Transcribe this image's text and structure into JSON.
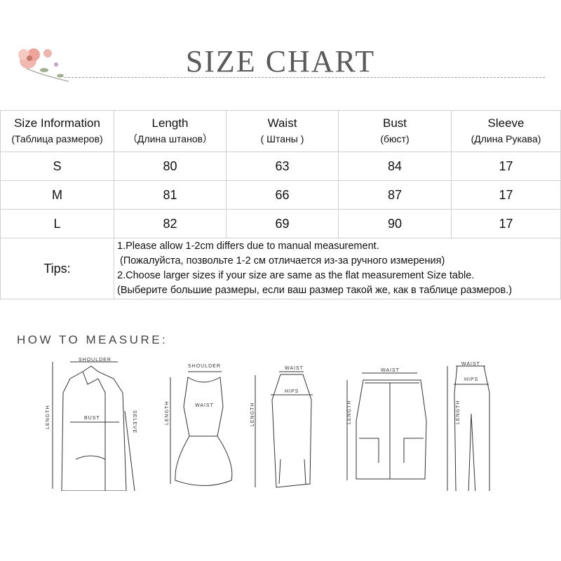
{
  "title": "SIZE CHART",
  "table": {
    "headers": [
      {
        "label": "Size Information",
        "sub": "(Таблица размеров)"
      },
      {
        "label": "Length",
        "sub": "（Длина штанов）"
      },
      {
        "label": "Waist",
        "sub": "( Штаны )"
      },
      {
        "label": "Bust",
        "sub": "(бюст)"
      },
      {
        "label": "Sleeve",
        "sub": "(Длина Рукава)"
      }
    ],
    "rows": [
      [
        "S",
        "80",
        "63",
        "84",
        "17"
      ],
      [
        "M",
        "81",
        "66",
        "87",
        "17"
      ],
      [
        "L",
        "82",
        "69",
        "90",
        "17"
      ]
    ],
    "tips_label": "Tips:",
    "tips": [
      "1.Please allow 1-2cm differs due to manual measurement.",
      " (Пожалуйста, позвольте 1-2 см отличается из-за ручного измерения)",
      "2.Choose larger sizes if your size are same as the flat measurement Size table.",
      "(Выберите большие размеры, если ваш размер такой же, как в таблице размеров.)"
    ]
  },
  "how_to_measure": "HOW TO MEASURE:",
  "diagram_labels": {
    "shoulder": "SHOULDER",
    "bust": "BUST",
    "length": "LENGTH",
    "sleeve": "SELEVE",
    "waist": "WAIST",
    "hips": "HIPS"
  },
  "colors": {
    "title": "#5a5a5a",
    "border": "#d0d0d0"
  }
}
